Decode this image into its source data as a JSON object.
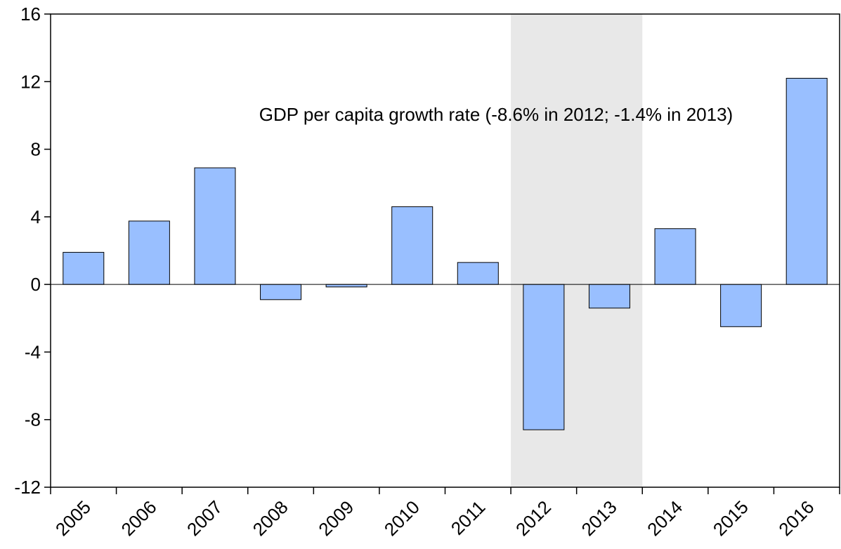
{
  "chart_data": {
    "type": "bar",
    "title": "",
    "xlabel": "",
    "ylabel": "",
    "categories": [
      "2005",
      "2006",
      "2007",
      "2008",
      "2009",
      "2010",
      "2011",
      "2012",
      "2013",
      "2014",
      "2015",
      "2016"
    ],
    "values": [
      1.9,
      3.75,
      6.9,
      -0.9,
      -0.15,
      4.6,
      1.3,
      -8.6,
      -1.4,
      3.3,
      -2.5,
      12.2
    ],
    "ylim": [
      -12,
      16
    ],
    "yticks": [
      "-12",
      "-8",
      "-4",
      "0",
      "4",
      "8",
      "12",
      "16"
    ],
    "grid": false,
    "bar_color": "#99bfff",
    "bar_edge_color": "#000000",
    "shaded_range": [
      "2012",
      "2013"
    ],
    "shade_color": "#e8e8e8",
    "annotation": "GDP per capita growth rate (-8.6% in 2012; -1.4% in 2013)"
  }
}
